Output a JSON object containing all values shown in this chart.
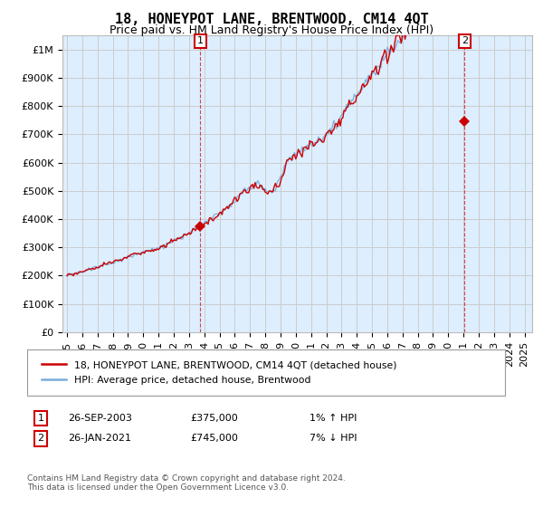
{
  "title": "18, HONEYPOT LANE, BRENTWOOD, CM14 4QT",
  "subtitle": "Price paid vs. HM Land Registry's House Price Index (HPI)",
  "ylabel_ticks": [
    "£0",
    "£100K",
    "£200K",
    "£300K",
    "£400K",
    "£500K",
    "£600K",
    "£700K",
    "£800K",
    "£900K",
    "£1M"
  ],
  "ytick_values": [
    0,
    100000,
    200000,
    300000,
    400000,
    500000,
    600000,
    700000,
    800000,
    900000,
    1000000
  ],
  "ylim": [
    0,
    1050000
  ],
  "xlim_start": 1994.7,
  "xlim_end": 2025.5,
  "hpi_color": "#7aaddc",
  "price_color": "#cc0000",
  "marker_color": "#cc0000",
  "bg_fill_color": "#ddeeff",
  "sale1_x": 2003.74,
  "sale1_y": 375000,
  "sale2_x": 2021.07,
  "sale2_y": 745000,
  "legend_label1": "18, HONEYPOT LANE, BRENTWOOD, CM14 4QT (detached house)",
  "legend_label2": "HPI: Average price, detached house, Brentwood",
  "annotation1_label": "1",
  "annotation2_label": "2",
  "table_row1": [
    "1",
    "26-SEP-2003",
    "£375,000",
    "1% ↑ HPI"
  ],
  "table_row2": [
    "2",
    "26-JAN-2021",
    "£745,000",
    "7% ↓ HPI"
  ],
  "footer": "Contains HM Land Registry data © Crown copyright and database right 2024.\nThis data is licensed under the Open Government Licence v3.0.",
  "bg_color": "#ffffff",
  "grid_color": "#cccccc",
  "title_fontsize": 11,
  "subtitle_fontsize": 9,
  "tick_fontsize": 8
}
